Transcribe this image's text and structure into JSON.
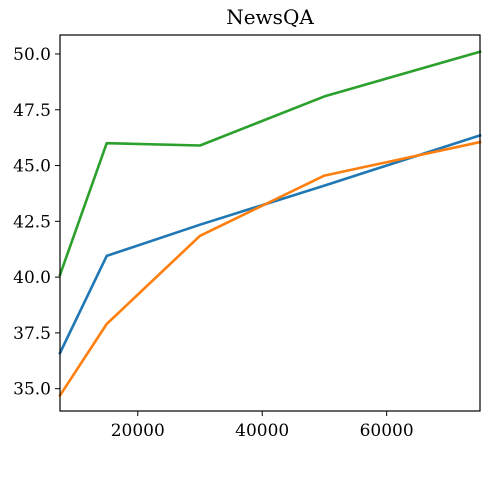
{
  "chart_data": {
    "type": "line",
    "title": "NewsQA",
    "xlabel": "",
    "ylabel": "",
    "xlim": [
      7500,
      75000
    ],
    "ylim": [
      34.0,
      50.85
    ],
    "x_ticks": [
      20000,
      40000,
      60000
    ],
    "y_ticks": [
      35.0,
      37.5,
      40.0,
      42.5,
      45.0,
      47.5,
      50.0
    ],
    "x_tick_labels": [
      "20000",
      "40000",
      "60000"
    ],
    "y_tick_labels": [
      "35.0",
      "37.5",
      "40.0",
      "42.5",
      "45.0",
      "47.5",
      "50.0"
    ],
    "grid": false,
    "legend": "none",
    "x": [
      7500,
      15000,
      30000,
      50000,
      75000
    ],
    "series": [
      {
        "color": "#1f77b4",
        "values": [
          36.6,
          40.95,
          42.35,
          44.1,
          46.35
        ]
      },
      {
        "color": "#ff7f0e",
        "values": [
          34.7,
          37.9,
          41.85,
          44.55,
          46.05
        ]
      },
      {
        "color": "#2ca02c",
        "values": [
          40.1,
          46.0,
          45.9,
          48.1,
          50.1
        ]
      }
    ]
  }
}
